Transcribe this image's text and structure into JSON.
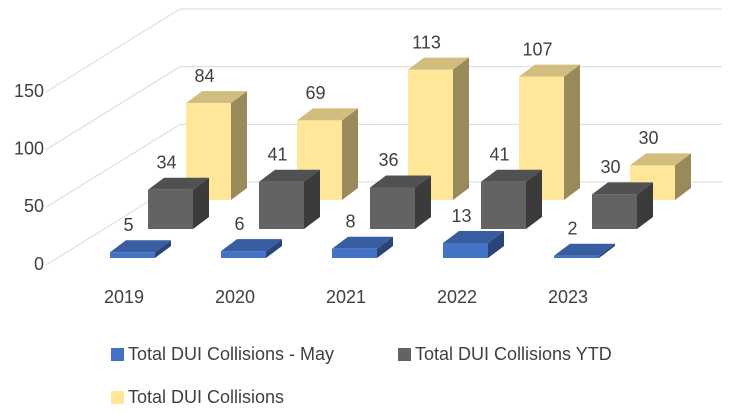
{
  "chart_data": {
    "type": "bar3d",
    "categories": [
      "2019",
      "2020",
      "2021",
      "2022",
      "2023"
    ],
    "series": [
      {
        "name": "Total DUI Collisions - May",
        "color": "#4472c4",
        "values": [
          5,
          6,
          8,
          13,
          2
        ]
      },
      {
        "name": "Total DUI Collisions YTD",
        "color": "#636363",
        "values": [
          34,
          41,
          36,
          41,
          30
        ]
      },
      {
        "name": "Total DUI Collisions",
        "color": "#ffe699",
        "values": [
          84,
          69,
          113,
          107,
          30
        ]
      }
    ],
    "ylim": [
      0,
      150
    ],
    "yticks": [
      0,
      50,
      100,
      150
    ],
    "grid": true
  }
}
